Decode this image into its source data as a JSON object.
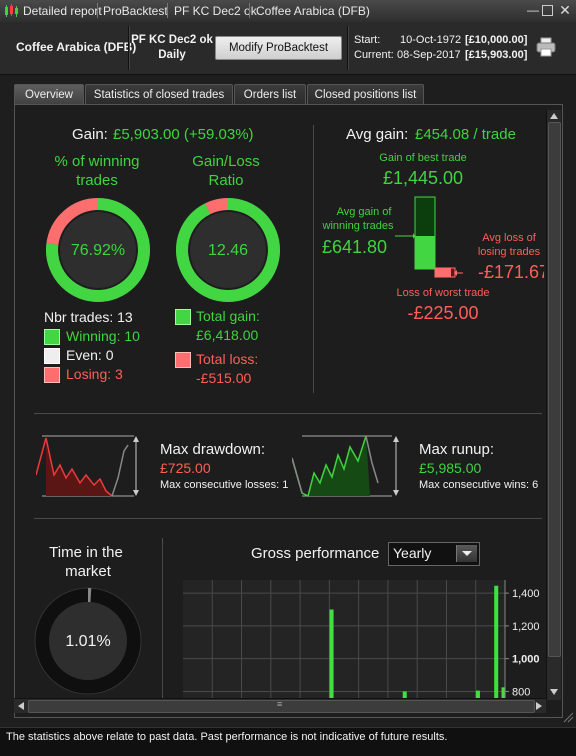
{
  "titlebar": {
    "crumbs": [
      "Detailed report",
      "ProBacktest",
      "PF KC Dec2 ok",
      "Coffee Arabica (DFB)"
    ],
    "window_controls": [
      "minimize",
      "restore",
      "close"
    ]
  },
  "header": {
    "instrument": "Coffee Arabica (DFB)",
    "system_name": "PF KC Dec2 ok",
    "timeframe": "Daily",
    "modify_button": "Modify ProBacktest",
    "start_label": "Start:",
    "start_date": "10-Oct-1972",
    "start_value": "[£10,000.00]",
    "current_label": "Current:",
    "current_date": "08-Sep-2017",
    "current_value": "[£15,903.00]",
    "print_icon": "printer-icon"
  },
  "tabs": [
    {
      "label": "Overview",
      "active": true
    },
    {
      "label": "Statistics of closed trades",
      "active": false
    },
    {
      "label": "Orders list",
      "active": false
    },
    {
      "label": "Closed positions list",
      "active": false
    }
  ],
  "gain": {
    "label": "Gain:",
    "value": "£5,903.00 (+59.03%)"
  },
  "winning_pct": {
    "title_line1": "% of winning",
    "title_line2": "trades",
    "value": "76.92%",
    "fraction": 0.7692
  },
  "gain_loss_ratio": {
    "title_line1": "Gain/Loss",
    "title_line2": "Ratio",
    "value": "12.46",
    "fraction": 0.9257
  },
  "trades": {
    "nbr_label": "Nbr trades: 13",
    "winning_label": "Winning: 10",
    "even_label": "Even: 0",
    "losing_label": "Losing: 3"
  },
  "totals": {
    "gain_label": "Total gain:",
    "gain_value": "£6,418.00",
    "loss_label": "Total loss:",
    "loss_value": "-£515.00"
  },
  "avg_gain": {
    "label": "Avg gain:",
    "value": "£454.08 / trade",
    "best_label": "Gain of best trade",
    "best_value": "£1,445.00",
    "avg_win_label_line1": "Avg gain of",
    "avg_win_label_line2": "winning trades",
    "avg_win_value": "£641.80",
    "avg_loss_label_line1": "Avg loss of",
    "avg_loss_label_line2": "losing trades",
    "avg_loss_value": "-£171.67",
    "worst_label": "Loss of worst trade",
    "worst_value": "-£225.00"
  },
  "drawdown": {
    "label": "Max drawdown:",
    "value": "£725.00",
    "sub": "Max consecutive losses: 1"
  },
  "runup": {
    "label": "Max runup:",
    "value": "£5,985.00",
    "sub": "Max consecutive wins: 6"
  },
  "time_in_market": {
    "title_line1": "Time in the",
    "title_line2": "market",
    "value": "1.01%",
    "fraction": 0.0101
  },
  "gross_performance": {
    "label": "Gross performance",
    "period_selected": "Yearly"
  },
  "chart_data": {
    "type": "bar",
    "title": "Gross performance",
    "y_tick_labels": [
      "1,400",
      "1,200",
      "1,000",
      "800"
    ],
    "ylim": [
      760,
      1480
    ],
    "bold_tick": "1,000",
    "grid": true,
    "values": [
      0,
      0,
      0,
      0,
      0,
      0,
      0,
      0,
      0,
      0,
      0,
      0,
      0,
      0,
      0,
      0,
      0,
      0,
      0,
      0,
      0,
      0,
      0,
      0,
      0,
      0,
      0,
      0,
      0,
      0,
      0,
      0,
      0,
      0,
      0,
      0,
      0,
      0,
      0,
      0,
      1300,
      0,
      0,
      0,
      0,
      0,
      0,
      0,
      0,
      0,
      0,
      0,
      0,
      0,
      0,
      0,
      0,
      0,
      0,
      0,
      800,
      0,
      0,
      0,
      0,
      0,
      0,
      0,
      0,
      0,
      0,
      0,
      0,
      0,
      0,
      0,
      0,
      0,
      0,
      0,
      805,
      0,
      0,
      0,
      0,
      1445,
      0,
      825
    ]
  },
  "footer": {
    "disclaimer": "The statistics above relate to past data. Past performance is not indicative of future results."
  }
}
